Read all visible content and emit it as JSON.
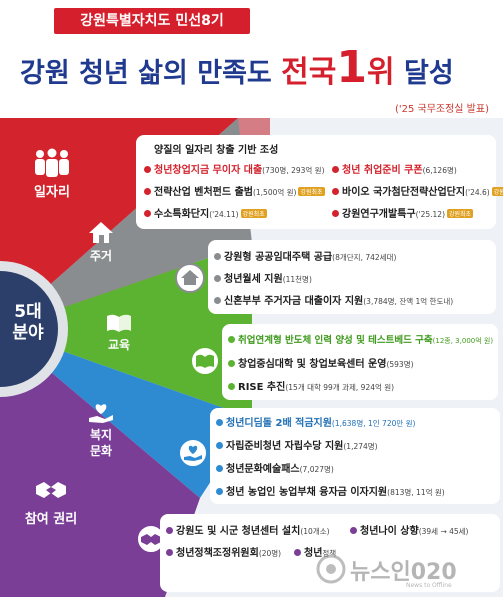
{
  "header": {
    "tagline": "강원특별자치도 민선8기",
    "headline_part1": "강원 청년 삶의 만족도 ",
    "headline_part2": "전국",
    "headline_part3": "1",
    "headline_part4": "위",
    "headline_part5": " 달성",
    "source": "('25 국무조정실 발표)"
  },
  "center": {
    "label_line1": "5대",
    "label_line2": "분야"
  },
  "sectors": [
    {
      "label": "일자리",
      "icon": "people-icon",
      "color": "#d3242e"
    },
    {
      "label": "주거",
      "icon": "house-icon",
      "color": "#8a8d8f"
    },
    {
      "label": "교육",
      "icon": "book-icon",
      "color": "#5bb331"
    },
    {
      "label": "복지 문화",
      "icon": "heart-hand-icon",
      "color": "#2e8bd1"
    },
    {
      "label": "참여 권리",
      "icon": "handshake-icon",
      "color": "#7a3e96"
    }
  ],
  "jobs": {
    "heading": "양질의 일자리 창출 기반 조성",
    "items": [
      {
        "title": "청년창업지금 무이자 대출",
        "detail": "(730명, 293억 원)"
      },
      {
        "title": "청년 취업준비 쿠폰",
        "detail": "(6,126명)"
      },
      {
        "title": "전략산업 벤처펀드 출범",
        "detail": "(1,500억 원)",
        "tag": "강원최초"
      },
      {
        "title": "바이오 국가첨단전략산업단지",
        "detail": "('24.6)",
        "tag": "강원최초"
      },
      {
        "title": "수소특화단지",
        "detail": "('24.11)",
        "tag": "강원최초"
      },
      {
        "title": "강원연구개발특구",
        "detail": "('25.12)",
        "tag": "강원최초"
      }
    ]
  },
  "housing": {
    "items": [
      {
        "title": "강원형 공공임대주택 공급",
        "detail": "(8개단지, 742세대)"
      },
      {
        "title": "청년월세 지원",
        "detail": "(11천명)"
      },
      {
        "title": "신혼부부 주거자금 대출이자 지원",
        "detail": "(3,784명, 잔액 1억 한도내)"
      }
    ]
  },
  "education": {
    "items": [
      {
        "title": "취업연계형 반도체 인력 양성 및 테스트베드 구축",
        "detail": "(12종, 3,000억 원)"
      },
      {
        "title": "창업중심대학 및 창업보육센터 운영",
        "detail": "(593명)"
      },
      {
        "title": "RISE 추진",
        "detail": "(15개 대학 99개 과제, 924억 원)"
      }
    ]
  },
  "welfare": {
    "items": [
      {
        "title": "청년디딤돌 2배 적금지원",
        "detail": "(1,638명, 1인 720만 원)"
      },
      {
        "title": "자립준비청년 자립수당 지원",
        "detail": "(1,274명)"
      },
      {
        "title": "청년문화예술패스",
        "detail": "(7,027명)"
      },
      {
        "title": "청년 농업인 농업부채 융자금 이자지원",
        "detail": "(813명, 11억 원)"
      }
    ]
  },
  "participation": {
    "items": [
      {
        "title": "강원도 및 시군 청년센터 설치",
        "detail": "(10개소)"
      },
      {
        "title": "청년나이 상향",
        "detail": "(39세 → 45세)"
      },
      {
        "title": "청년정책조정위원회",
        "detail": "(20명)"
      },
      {
        "title": "청년",
        "detail": "정책"
      }
    ]
  },
  "watermark": {
    "brand": "뉴스인020",
    "slogan": "News to Offline"
  },
  "colors": {
    "red": "#d3242e",
    "navy": "#1f3a8f",
    "grey": "#8a8d8f",
    "green": "#5bb331",
    "blue": "#2e8bd1",
    "purple": "#7a3e96",
    "gold": "#e0a020"
  }
}
